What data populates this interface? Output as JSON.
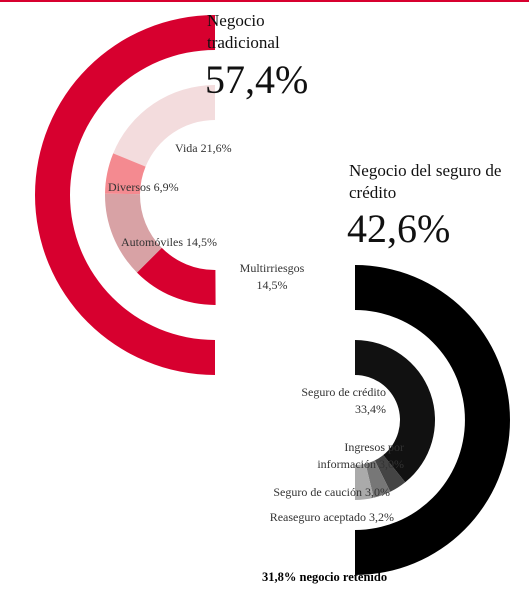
{
  "chart_data": {
    "type": "donut",
    "groups": [
      {
        "title": "Negocio tradicional",
        "value": 57.4,
        "value_label": "57,4%",
        "color": "#d7002f",
        "segments": [
          {
            "name": "Vida",
            "value": 21.6,
            "value_label": "21,6%",
            "color": "#f3dcdd"
          },
          {
            "name": "Diversos",
            "value": 6.9,
            "value_label": "6,9%",
            "color": "#f48a90"
          },
          {
            "name": "Automóviles",
            "value": 14.5,
            "value_label": "14,5%",
            "color": "#d8a2a5"
          },
          {
            "name": "Multirriesgos",
            "value": 14.5,
            "value_label": "14,5%",
            "color": "#d7002f"
          }
        ]
      },
      {
        "title": "Negocio del seguro de crédito",
        "value": 42.6,
        "value_label": "42,6%",
        "color": "#000000",
        "segments": [
          {
            "name": "Seguro de crédito",
            "value": 33.4,
            "value_label": "33,4%",
            "color": "#111111"
          },
          {
            "name": "Ingresos por información",
            "value": 3.0,
            "value_label": "3,0%",
            "color": "#444444"
          },
          {
            "name": "Seguro de caución",
            "value": 3.0,
            "value_label": "3,0%",
            "color": "#777777"
          },
          {
            "name": "Reaseguro aceptado",
            "value": 3.2,
            "value_label": "3,2%",
            "color": "#aaaaaa"
          }
        ]
      }
    ],
    "annotation": "31,8% negocio retenido"
  }
}
